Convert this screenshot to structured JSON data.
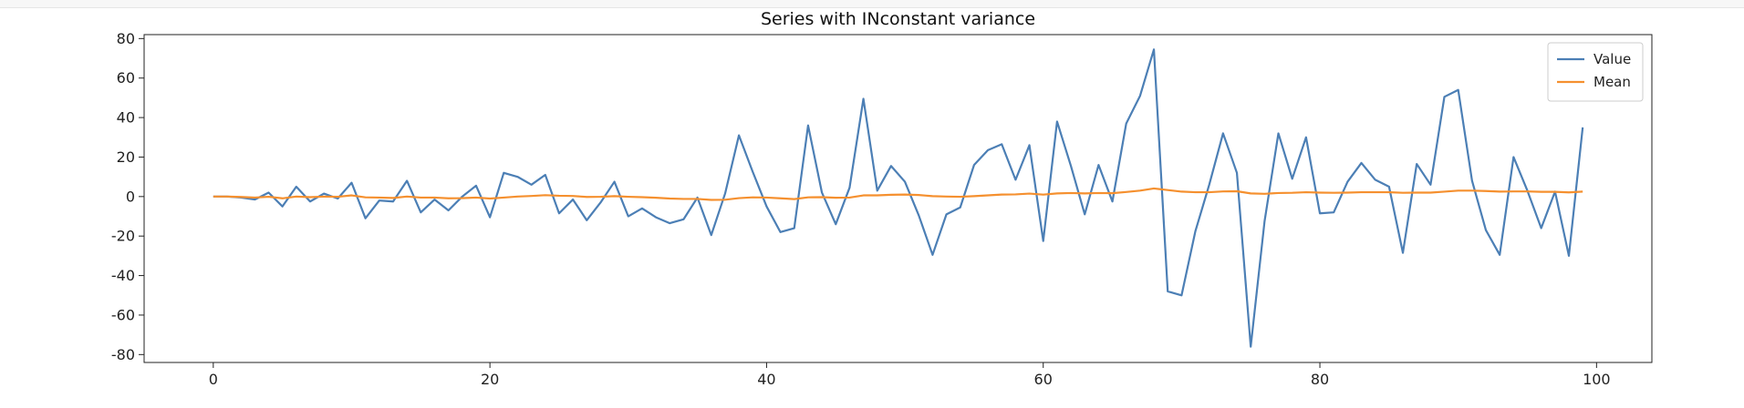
{
  "chart_data": {
    "type": "line",
    "title": "Series with INconstant variance",
    "xlabel": "",
    "ylabel": "",
    "xlim": [
      -5,
      104
    ],
    "ylim": [
      -84,
      82
    ],
    "x_ticks": [
      0,
      20,
      40,
      60,
      80,
      100
    ],
    "y_ticks": [
      -80,
      -60,
      -40,
      -20,
      0,
      20,
      40,
      60,
      80
    ],
    "grid": false,
    "legend_position": "top-right",
    "x": [
      0,
      1,
      2,
      3,
      4,
      5,
      6,
      7,
      8,
      9,
      10,
      11,
      12,
      13,
      14,
      15,
      16,
      17,
      18,
      19,
      20,
      21,
      22,
      23,
      24,
      25,
      26,
      27,
      28,
      29,
      30,
      31,
      32,
      33,
      34,
      35,
      36,
      37,
      38,
      39,
      40,
      41,
      42,
      43,
      44,
      45,
      46,
      47,
      48,
      49,
      50,
      51,
      52,
      53,
      54,
      55,
      56,
      57,
      58,
      59,
      60,
      61,
      62,
      63,
      64,
      65,
      66,
      67,
      68,
      69,
      70,
      71,
      72,
      73,
      74,
      75,
      76,
      77,
      78,
      79,
      80,
      81,
      82,
      83,
      84,
      85,
      86,
      87,
      88,
      89,
      90,
      91,
      92,
      93,
      94,
      95,
      96,
      97,
      98,
      99
    ],
    "series": [
      {
        "name": "Value",
        "color": "#4c7fb5",
        "values": [
          0,
          0,
          -0.5,
          -1.5,
          2,
          -5,
          5,
          -2.5,
          1.5,
          -1,
          7,
          -11,
          -2,
          -2.5,
          8,
          -8,
          -1.5,
          -7,
          0,
          5.5,
          -10.5,
          12,
          10,
          6,
          11,
          -8.5,
          -1.5,
          -12,
          -3,
          7.5,
          -10,
          -6,
          -10.5,
          -13.5,
          -11.5,
          -0.5,
          -19.5,
          1.5,
          31,
          12.5,
          -5,
          -18,
          -16,
          36,
          2,
          -14,
          4.5,
          49.5,
          3,
          15.5,
          7.5,
          -9.5,
          -29.5,
          -9,
          -5.5,
          16,
          23.5,
          26.5,
          8.5,
          26,
          -22.5,
          38,
          15.5,
          -9,
          16,
          -2.5,
          37,
          51,
          74.5,
          -48,
          -50,
          -17.5,
          6,
          32,
          12,
          -76,
          -12.5,
          32,
          9,
          30,
          -8.5,
          -8,
          7.5,
          17,
          8.5,
          5,
          -28.5,
          16.5,
          6,
          50.5,
          54,
          8,
          -17,
          -29.5,
          20,
          3,
          -16,
          2.5,
          -30,
          35
        ]
      },
      {
        "name": "Mean",
        "color": "#f5902f",
        "values": [
          0,
          0,
          -0.2,
          -0.5,
          -0.1,
          -0.9,
          0,
          -0.3,
          0,
          -0.1,
          0.6,
          -0.4,
          -0.5,
          -0.7,
          0,
          -0.5,
          -0.5,
          -0.9,
          -0.8,
          -0.5,
          -1,
          -0.5,
          0,
          0.3,
          0.7,
          0.4,
          0.3,
          -0.2,
          -0.1,
          0.2,
          -0.1,
          -0.3,
          -0.6,
          -1,
          -1.2,
          -1.2,
          -1.7,
          -1.6,
          -0.8,
          -0.4,
          -0.5,
          -0.9,
          -1.3,
          -0.4,
          -0.3,
          -0.6,
          -0.5,
          0.6,
          0.6,
          0.9,
          1,
          0.8,
          0.2,
          0,
          -0.1,
          0.2,
          0.6,
          1,
          1.1,
          1.5,
          1,
          1.6,
          1.8,
          1.6,
          1.8,
          1.7,
          2.3,
          3,
          4.1,
          3.3,
          2.5,
          2.2,
          2.2,
          2.6,
          2.7,
          1.6,
          1.4,
          1.8,
          1.9,
          2.2,
          2,
          1.9,
          2,
          2.2,
          2.2,
          2.2,
          1.9,
          2,
          2,
          2.5,
          3,
          3,
          2.8,
          2.5,
          2.6,
          2.6,
          2.4,
          2.4,
          2.1,
          2.5
        ]
      }
    ]
  }
}
